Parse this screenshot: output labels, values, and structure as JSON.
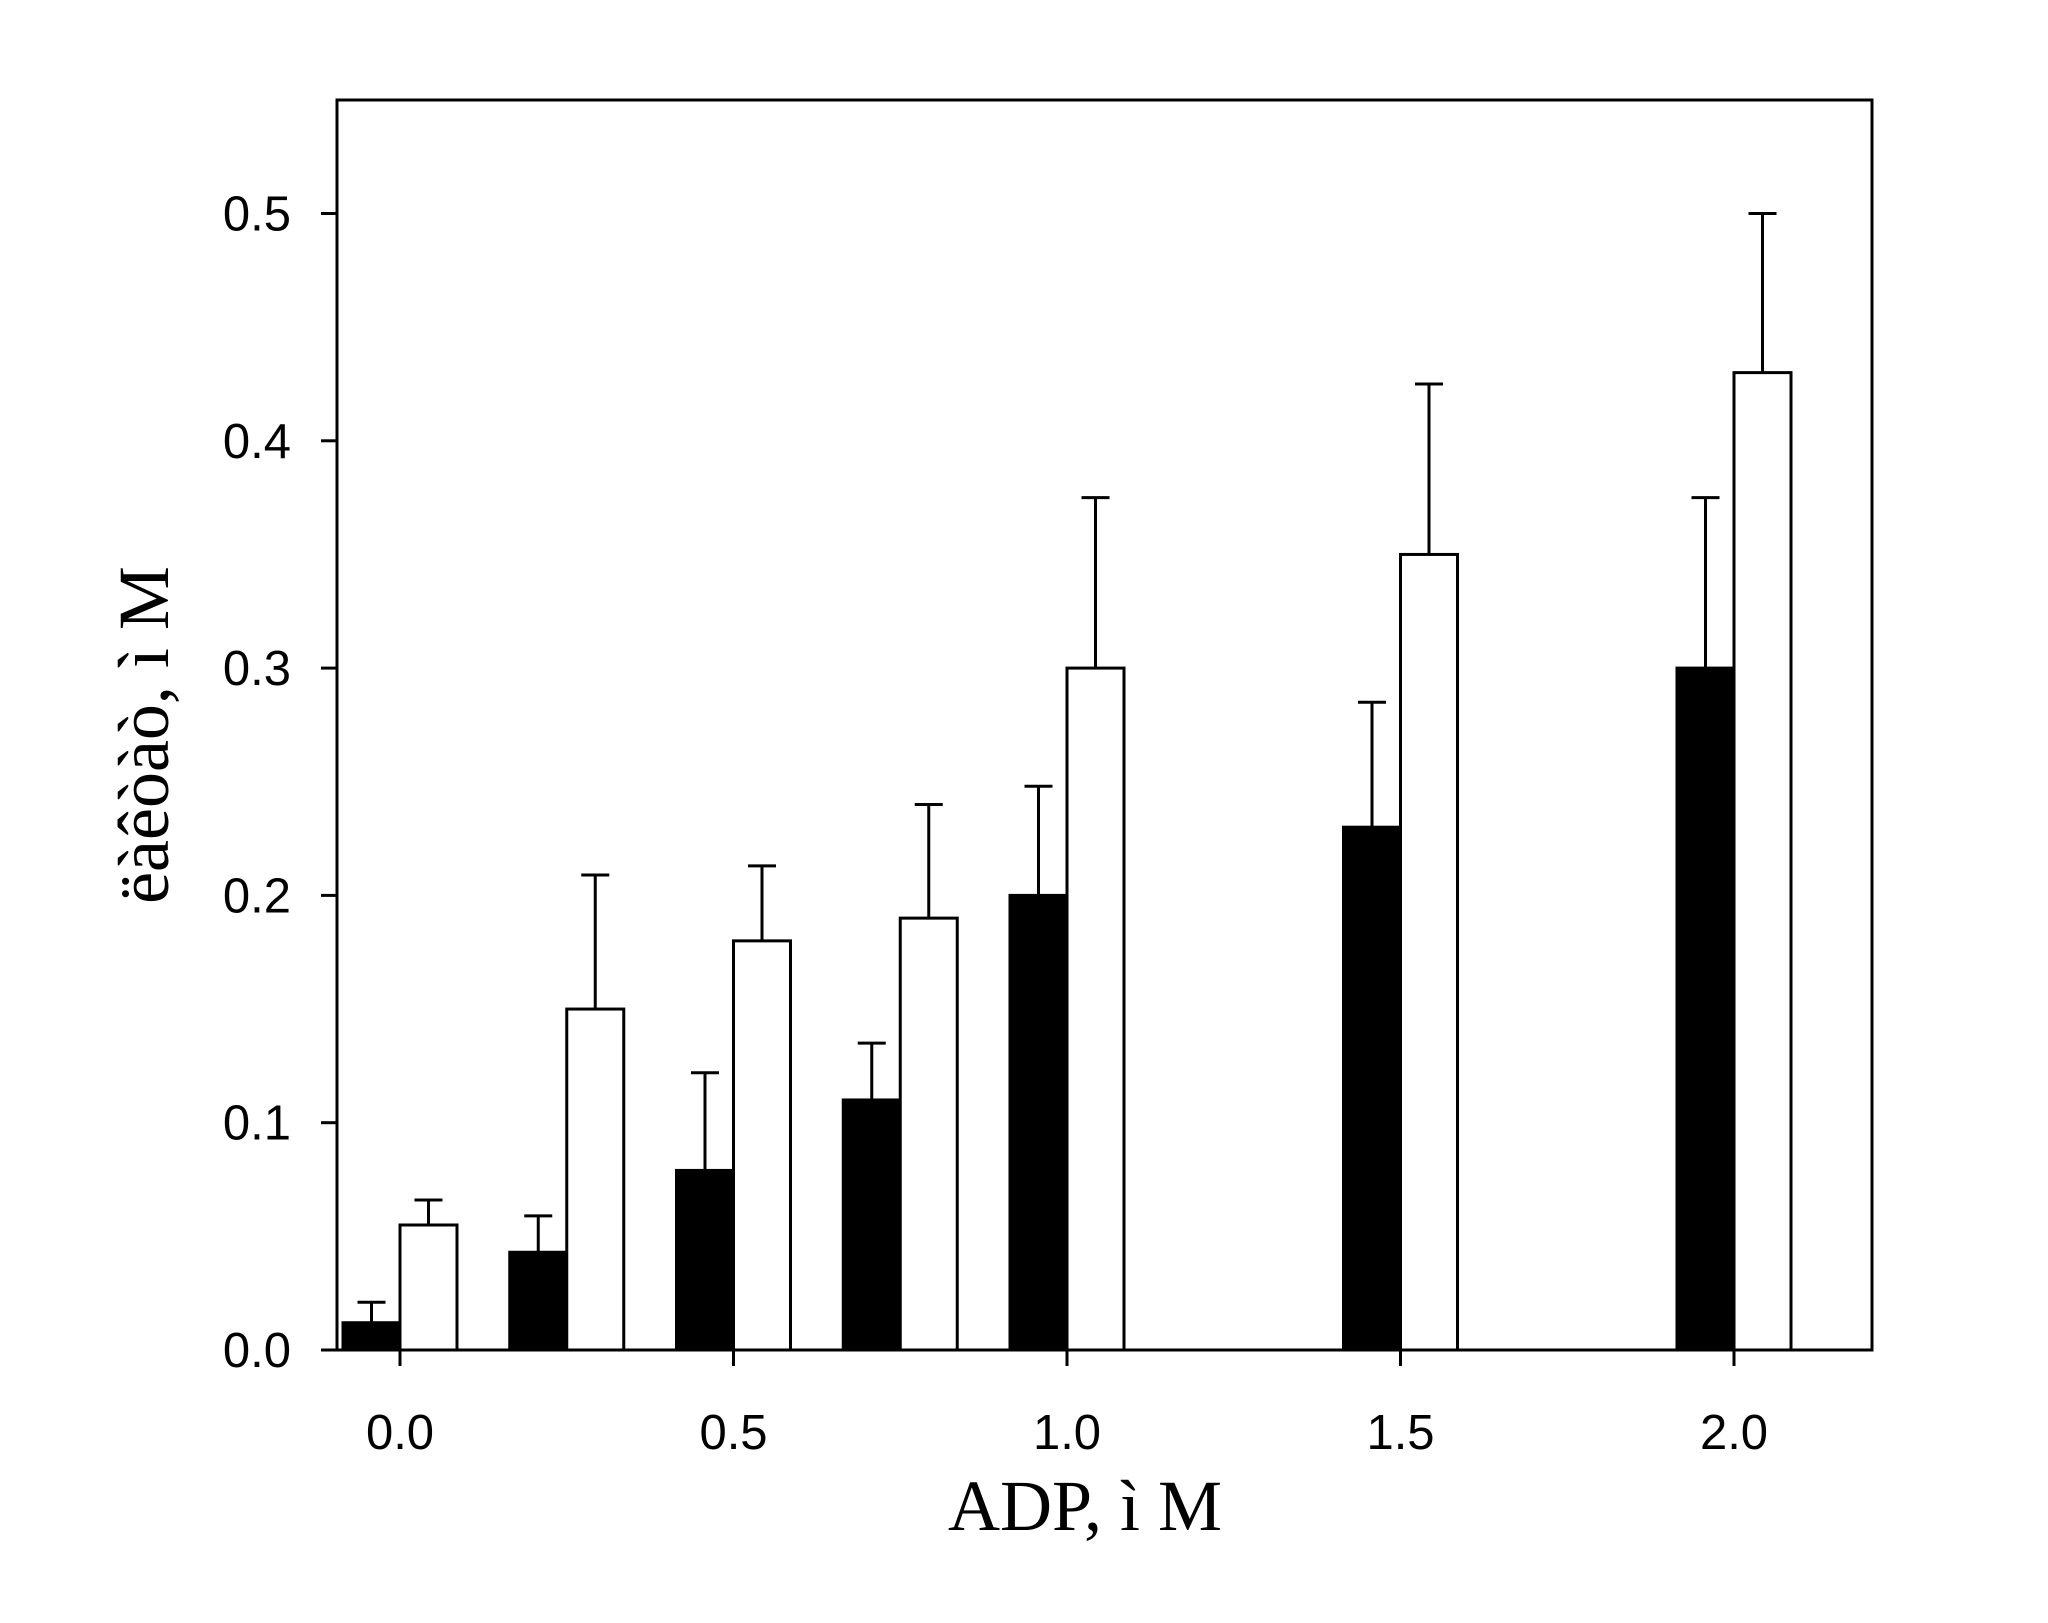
{
  "chart_data": {
    "type": "bar",
    "xlabel": "ADP, ì M",
    "ylabel": "ëàêòàò, ì M",
    "x": [
      0.0,
      0.25,
      0.5,
      0.75,
      1.0,
      1.5,
      2.0
    ],
    "xlim": [
      -0.1,
      2.2
    ],
    "ylim": [
      0.0,
      0.55
    ],
    "xticks": [
      0.0,
      0.5,
      1.0,
      1.5,
      2.0
    ],
    "xtick_labels": [
      "0.0",
      "0.5",
      "1.0",
      "1.5",
      "2.0"
    ],
    "yticks": [
      0.0,
      0.1,
      0.2,
      0.3,
      0.4,
      0.5
    ],
    "ytick_labels": [
      "0.0",
      "0.1",
      "0.2",
      "0.3",
      "0.4",
      "0.5"
    ],
    "grid": false,
    "legend": "none",
    "series": [
      {
        "color": "#000000",
        "values": [
          0.012,
          0.043,
          0.079,
          0.11,
          0.2,
          0.23,
          0.3
        ],
        "error": [
          0.009,
          0.016,
          0.043,
          0.025,
          0.048,
          0.055,
          0.075
        ]
      },
      {
        "color": "#ffffff",
        "values": [
          0.055,
          0.15,
          0.18,
          0.19,
          0.3,
          0.35,
          0.43
        ],
        "error": [
          0.011,
          0.059,
          0.033,
          0.05,
          0.075,
          0.075,
          0.07
        ]
      }
    ]
  }
}
